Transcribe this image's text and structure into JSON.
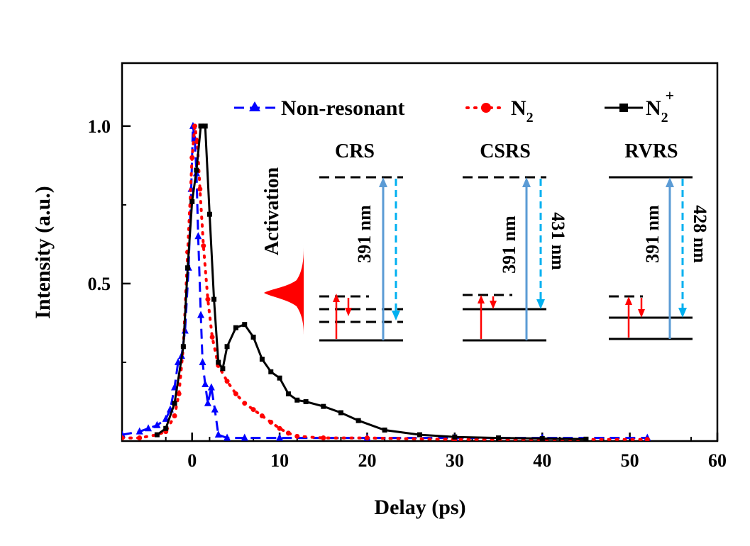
{
  "chart_data": {
    "type": "line",
    "title": "",
    "xlabel": "Delay (ps)",
    "ylabel": "Intensity (a.u.)",
    "xlim": [
      -8,
      60
    ],
    "ylim": [
      0,
      1.2
    ],
    "xticks": [
      0,
      10,
      20,
      30,
      40,
      50,
      60
    ],
    "xtick_labels": [
      "0",
      "10",
      "20",
      "30",
      "40",
      "50",
      "60"
    ],
    "yticks": [
      0.5,
      1.0
    ],
    "ytick_labels": [
      "0.5",
      "1.0"
    ],
    "grid": false,
    "legend_position": "top",
    "series": [
      {
        "name": "Non-resonant",
        "color": "#0000ff",
        "style": "dashed",
        "marker": "triangle",
        "x": [
          -8,
          -6,
          -5,
          -4,
          -3,
          -2.5,
          -2,
          -1.6,
          -1.2,
          -0.8,
          -0.4,
          -0.1,
          0.1,
          0.3,
          0.5,
          0.7,
          1.0,
          1.2,
          1.5,
          1.8,
          2.2,
          2.6,
          3,
          4,
          6,
          10,
          20,
          30,
          40,
          52
        ],
        "y": [
          0.02,
          0.03,
          0.04,
          0.05,
          0.07,
          0.1,
          0.17,
          0.25,
          0.27,
          0.35,
          0.55,
          0.8,
          1.0,
          0.96,
          0.85,
          0.65,
          0.4,
          0.25,
          0.18,
          0.12,
          0.17,
          0.1,
          0.02,
          0.01,
          0.01,
          0.01,
          0.01,
          0.01,
          0.01,
          0.01
        ]
      },
      {
        "name": "N2",
        "color": "#ff0000",
        "style": "dotted",
        "marker": "circle",
        "x": [
          -8,
          -6,
          -4,
          -3,
          -2,
          -1.5,
          -1,
          -0.5,
          0,
          0.3,
          0.6,
          0.9,
          1.3,
          1.8,
          2.3,
          3,
          4,
          5,
          6,
          7,
          8,
          9,
          10,
          11,
          12,
          15,
          20,
          30,
          40,
          52
        ],
        "y": [
          0.01,
          0.01,
          0.02,
          0.03,
          0.08,
          0.15,
          0.3,
          0.6,
          0.9,
          1.0,
          0.95,
          0.8,
          0.62,
          0.45,
          0.33,
          0.24,
          0.19,
          0.15,
          0.12,
          0.1,
          0.08,
          0.06,
          0.04,
          0.025,
          0.015,
          0.01,
          0.01,
          0.005,
          0.005,
          0.005
        ]
      },
      {
        "name": "N2+",
        "color": "#000000",
        "style": "solid",
        "marker": "square",
        "x": [
          -4,
          -3,
          -2,
          -1,
          -0.5,
          0,
          0.5,
          1,
          1.5,
          2,
          2.5,
          3,
          3.5,
          4,
          5,
          6,
          7,
          8,
          9,
          10,
          11,
          12,
          13,
          15,
          17,
          19,
          22,
          26,
          30,
          35,
          40,
          45
        ],
        "y": [
          0.02,
          0.04,
          0.12,
          0.3,
          0.55,
          0.76,
          0.86,
          1.0,
          1.0,
          0.72,
          0.45,
          0.25,
          0.23,
          0.3,
          0.36,
          0.37,
          0.33,
          0.26,
          0.22,
          0.2,
          0.15,
          0.13,
          0.125,
          0.11,
          0.09,
          0.065,
          0.035,
          0.02,
          0.013,
          0.01,
          0.008,
          0.006
        ]
      }
    ]
  },
  "legend": {
    "items": [
      {
        "label": "Non-resonant",
        "sub": "",
        "sup": ""
      },
      {
        "label": "N",
        "sub": "2",
        "sup": ""
      },
      {
        "label": "N",
        "sub": "2",
        "sup": "+"
      }
    ]
  },
  "activation_label": "Activation",
  "insets": [
    {
      "title": "CRS",
      "pump": "391 nm",
      "signal": ""
    },
    {
      "title": "CSRS",
      "pump": "391 nm",
      "signal": "431 nm"
    },
    {
      "title": "RVRS",
      "pump": "391 nm",
      "signal": "428 nm"
    }
  ]
}
